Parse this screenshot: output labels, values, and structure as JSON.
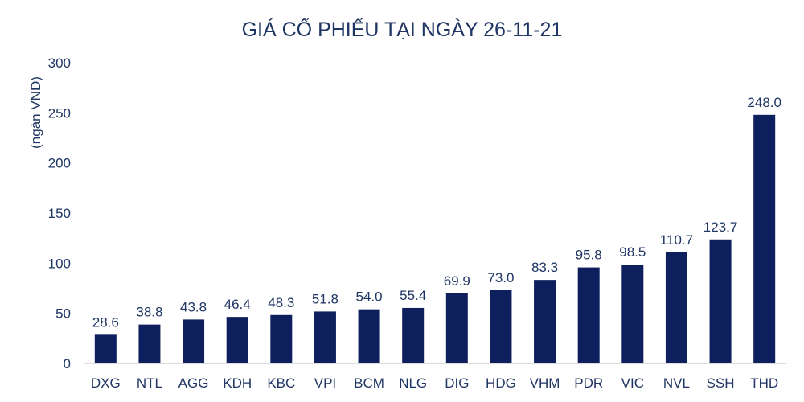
{
  "chart_data": {
    "type": "bar",
    "title": "GIÁ CỔ PHIẾU TẠI NGÀY 26-11-21",
    "xlabel": "",
    "ylabel": "(ngàn VND)",
    "ylim": [
      0,
      300
    ],
    "yticks": [
      0,
      50,
      100,
      150,
      200,
      250,
      300
    ],
    "grid": false,
    "legend": "none",
    "categories": [
      "DXG",
      "NTL",
      "AGG",
      "KDH",
      "KBC",
      "VPI",
      "BCM",
      "NLG",
      "DIG",
      "HDG",
      "VHM",
      "PDR",
      "VIC",
      "NVL",
      "SSH",
      "THD"
    ],
    "values": [
      28.6,
      38.8,
      43.8,
      46.4,
      48.3,
      51.8,
      54.0,
      55.4,
      69.9,
      73.0,
      83.3,
      95.8,
      98.5,
      110.7,
      123.7,
      248.0
    ],
    "value_labels": [
      "28.6",
      "38.8",
      "43.8",
      "46.4",
      "48.3",
      "51.8",
      "54.0",
      "55.4",
      "69.9",
      "73.0",
      "83.3",
      "95.8",
      "98.5",
      "110.7",
      "123.7",
      "248.0"
    ],
    "colors": {
      "bar": "#0d1f5c",
      "title": "#1f3563",
      "axis_text": "#1f3563",
      "axis_line": "#d0d0d0",
      "label": "#1f3563"
    }
  }
}
